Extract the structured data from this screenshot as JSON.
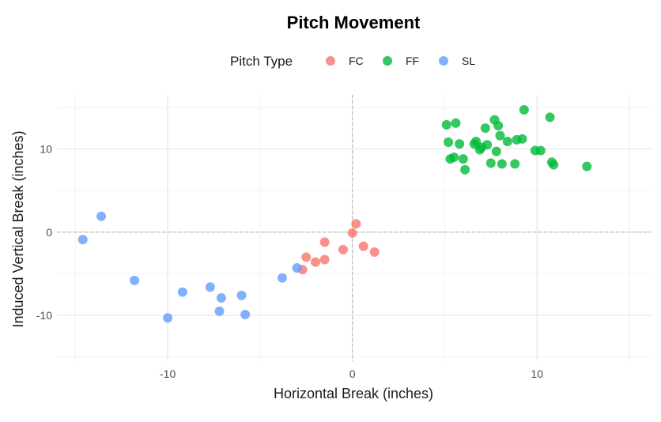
{
  "chart_data": {
    "type": "scatter",
    "title": "Pitch Movement",
    "xlabel": "Horizontal Break (inches)",
    "ylabel": "Induced Vertical Break (inches)",
    "xlim": [
      -16,
      16.2
    ],
    "ylim": [
      -15.5,
      16.5
    ],
    "x_ticks": [
      -10,
      0,
      10
    ],
    "y_ticks": [
      -10,
      0,
      10
    ],
    "x_tick_labels": [
      "-10",
      "0",
      "10"
    ],
    "y_tick_labels": [
      "-10",
      "0",
      "10"
    ],
    "reference_lines": {
      "x": 0,
      "y": 0,
      "style": "dashed"
    },
    "grid": true,
    "legend": {
      "title": "Pitch Type",
      "position": "top"
    },
    "series": [
      {
        "name": "FC",
        "color": "#F8766D",
        "points": [
          {
            "x": -2.7,
            "y": -4.5
          },
          {
            "x": -2.5,
            "y": -3.0
          },
          {
            "x": -2.0,
            "y": -3.6
          },
          {
            "x": -1.5,
            "y": -3.3
          },
          {
            "x": -1.5,
            "y": -1.2
          },
          {
            "x": -0.5,
            "y": -2.1
          },
          {
            "x": 0.0,
            "y": -0.1
          },
          {
            "x": 0.2,
            "y": 1.0
          },
          {
            "x": 0.6,
            "y": -1.7
          },
          {
            "x": 1.2,
            "y": -2.4
          }
        ]
      },
      {
        "name": "FF",
        "color": "#00BA38",
        "points": [
          {
            "x": 5.1,
            "y": 12.9
          },
          {
            "x": 5.6,
            "y": 13.1
          },
          {
            "x": 5.2,
            "y": 10.8
          },
          {
            "x": 5.3,
            "y": 8.8
          },
          {
            "x": 5.5,
            "y": 9.0
          },
          {
            "x": 5.8,
            "y": 10.6
          },
          {
            "x": 6.0,
            "y": 8.8
          },
          {
            "x": 6.1,
            "y": 7.5
          },
          {
            "x": 6.6,
            "y": 10.6
          },
          {
            "x": 6.7,
            "y": 10.9
          },
          {
            "x": 6.9,
            "y": 9.9
          },
          {
            "x": 7.0,
            "y": 10.2
          },
          {
            "x": 7.2,
            "y": 12.5
          },
          {
            "x": 7.3,
            "y": 10.5
          },
          {
            "x": 7.5,
            "y": 8.3
          },
          {
            "x": 7.7,
            "y": 13.5
          },
          {
            "x": 7.8,
            "y": 9.7
          },
          {
            "x": 7.9,
            "y": 12.8
          },
          {
            "x": 8.0,
            "y": 11.6
          },
          {
            "x": 8.1,
            "y": 8.2
          },
          {
            "x": 8.4,
            "y": 10.9
          },
          {
            "x": 8.8,
            "y": 8.2
          },
          {
            "x": 8.9,
            "y": 11.1
          },
          {
            "x": 9.2,
            "y": 11.2
          },
          {
            "x": 9.3,
            "y": 14.7
          },
          {
            "x": 9.9,
            "y": 9.8
          },
          {
            "x": 10.2,
            "y": 9.8
          },
          {
            "x": 10.7,
            "y": 13.8
          },
          {
            "x": 10.8,
            "y": 8.4
          },
          {
            "x": 10.9,
            "y": 8.1
          },
          {
            "x": 12.7,
            "y": 7.9
          }
        ]
      },
      {
        "name": "SL",
        "color": "#619CFF",
        "points": [
          {
            "x": -14.6,
            "y": -0.9
          },
          {
            "x": -13.6,
            "y": 1.9
          },
          {
            "x": -11.8,
            "y": -5.8
          },
          {
            "x": -10.0,
            "y": -10.3
          },
          {
            "x": -9.2,
            "y": -7.2
          },
          {
            "x": -7.7,
            "y": -6.6
          },
          {
            "x": -7.2,
            "y": -9.5
          },
          {
            "x": -7.1,
            "y": -7.9
          },
          {
            "x": -6.0,
            "y": -7.6
          },
          {
            "x": -5.8,
            "y": -9.9
          },
          {
            "x": -3.8,
            "y": -5.5
          },
          {
            "x": -3.0,
            "y": -4.3
          }
        ]
      }
    ]
  }
}
